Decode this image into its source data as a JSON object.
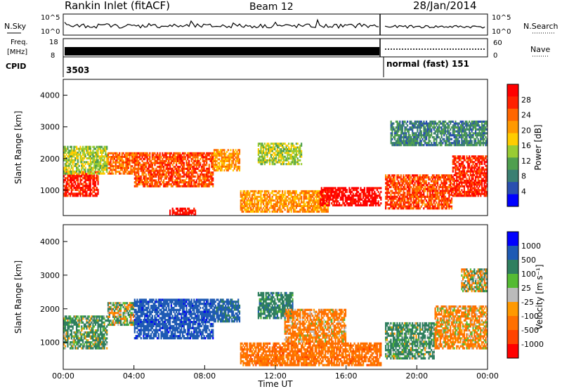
{
  "header": {
    "station": "Rankin Inlet (fitACF)",
    "beam": "Beam 12",
    "date": "28/Jan/2014"
  },
  "top_panels": {
    "nsky_label": "N.Sky",
    "nsky_ticks": [
      "10^5",
      "10^0"
    ],
    "nsearch_label": "N.Search",
    "nsearch_ticks": [
      "10^5",
      "10^0"
    ],
    "freq_label": "Freq.",
    "freq_unit": "[MHz]",
    "freq_ticks": [
      "18",
      "8"
    ],
    "nave_label": "Nave",
    "nave_ticks": [
      "60",
      "0"
    ],
    "cpid_label": "CPID",
    "cpid_value_1": "3503",
    "cpid_value_2": "normal (fast) 151"
  },
  "colors": {
    "power_scale": [
      "#0000ff",
      "#2a4fb0",
      "#3a7f72",
      "#4f9f4f",
      "#99cc33",
      "#ffcc00",
      "#ff9900",
      "#ff6600",
      "#ff2200",
      "#ff0000"
    ],
    "velocity_scale": [
      "#0000ff",
      "#1e5ab4",
      "#2f7f5f",
      "#55bb33",
      "#bbbbbb",
      "#ff9900",
      "#ff7000",
      "#ff4400",
      "#ff0000"
    ]
  },
  "chart_data": [
    {
      "type": "heatmap",
      "name": "power",
      "ylabel": "Slant Range [km]",
      "yticks": [
        "1000",
        "2000",
        "3000",
        "4000"
      ],
      "ylim": [
        200,
        4500
      ],
      "xlim": [
        0,
        24
      ],
      "colorbar_label": "Power [dB]",
      "colorbar_ticks": [
        "4",
        "8",
        "12",
        "16",
        "20",
        "24",
        "28"
      ],
      "colorbar_range": [
        0,
        30
      ],
      "regions": [
        {
          "t0": 0.0,
          "t1": 2.0,
          "r0": 800,
          "r1": 1600,
          "v": 27
        },
        {
          "t0": 0.0,
          "t1": 2.5,
          "r0": 1500,
          "r1": 2400,
          "v": 14
        },
        {
          "t0": 2.5,
          "t1": 4.0,
          "r0": 1500,
          "r1": 2200,
          "v": 22
        },
        {
          "t0": 4.0,
          "t1": 8.5,
          "r0": 1100,
          "r1": 2200,
          "v": 24
        },
        {
          "t0": 6.0,
          "t1": 7.5,
          "r0": 200,
          "r1": 450,
          "v": 28
        },
        {
          "t0": 8.5,
          "t1": 10.0,
          "r0": 1600,
          "r1": 2300,
          "v": 20
        },
        {
          "t0": 11.0,
          "t1": 13.5,
          "r0": 1800,
          "r1": 2500,
          "v": 14
        },
        {
          "t0": 10.0,
          "t1": 15.0,
          "r0": 300,
          "r1": 1000,
          "v": 20
        },
        {
          "t0": 14.5,
          "t1": 18.0,
          "r0": 500,
          "r1": 1100,
          "v": 29
        },
        {
          "t0": 18.2,
          "t1": 22.0,
          "r0": 400,
          "r1": 1500,
          "v": 24
        },
        {
          "t0": 22.0,
          "t1": 24.0,
          "r0": 800,
          "r1": 2100,
          "v": 26
        },
        {
          "t0": 18.5,
          "t1": 24.0,
          "r0": 2400,
          "r1": 3200,
          "v": 8
        }
      ]
    },
    {
      "type": "heatmap",
      "name": "velocity",
      "ylabel": "Slant Range [km]",
      "yticks": [
        "1000",
        "2000",
        "3000",
        "4000"
      ],
      "ylim": [
        200,
        4500
      ],
      "xlim": [
        0,
        24
      ],
      "xticks": [
        "00:00",
        "04:00",
        "08:00",
        "12:00",
        "16:00",
        "20:00",
        "00:00"
      ],
      "xlabel": "Time UT",
      "colorbar_label": "Velocity [m s⁻¹]",
      "colorbar_ticks": [
        "1000",
        "500",
        "100",
        "25",
        "-25",
        "-100",
        "-500",
        "-1000"
      ],
      "colorbar_range": [
        -1000,
        1000
      ],
      "regions": [
        {
          "t0": 0.0,
          "t1": 2.5,
          "r0": 800,
          "r1": 1800,
          "v": 150
        },
        {
          "t0": 2.5,
          "t1": 4.0,
          "r0": 1500,
          "r1": 2200,
          "v": 60
        },
        {
          "t0": 4.0,
          "t1": 8.5,
          "r0": 1100,
          "r1": 2300,
          "v": 800
        },
        {
          "t0": 8.5,
          "t1": 10.0,
          "r0": 1600,
          "r1": 2300,
          "v": 600
        },
        {
          "t0": 11.0,
          "t1": 13.0,
          "r0": 1700,
          "r1": 2500,
          "v": 300
        },
        {
          "t0": 12.5,
          "t1": 16.0,
          "r0": 1000,
          "r1": 2000,
          "v": -200
        },
        {
          "t0": 10.0,
          "t1": 18.0,
          "r0": 300,
          "r1": 1000,
          "v": -300
        },
        {
          "t0": 18.2,
          "t1": 21.0,
          "r0": 500,
          "r1": 1600,
          "v": 200
        },
        {
          "t0": 21.0,
          "t1": 24.0,
          "r0": 800,
          "r1": 2100,
          "v": -150
        },
        {
          "t0": 22.5,
          "t1": 24.0,
          "r0": 2500,
          "r1": 3200,
          "v": 10
        }
      ]
    }
  ]
}
